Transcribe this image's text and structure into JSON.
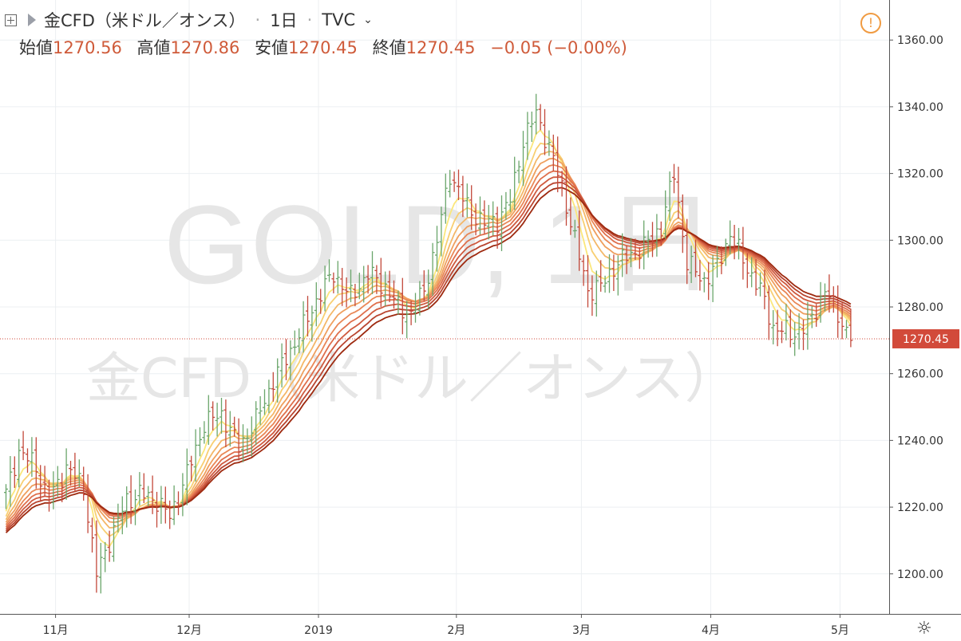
{
  "header": {
    "symbol": "金CFD（米ドル／オンス）",
    "interval": "1日",
    "exchange": "TVC",
    "open_label": "始値",
    "open": "1270.56",
    "high_label": "高値",
    "high": "1270.86",
    "low_label": "安値",
    "low": "1270.45",
    "close_label": "終値",
    "close": "1270.45",
    "change": "−0.05 (−0.00%)"
  },
  "watermark": {
    "line1": "GOLD, 1日",
    "line2": "金CFD（米ドル／オンス）"
  },
  "colors": {
    "up": "#6aa56b",
    "down": "#c2483a",
    "ribbon_fast": "#fbe77c",
    "ribbon_slow": "#9e2a10"
  },
  "chart_data": {
    "type": "ohlc",
    "y_range": [
      1188,
      1372
    ],
    "y_ticks": [
      "1360.00",
      "1340.00",
      "1320.00",
      "1300.00",
      "1280.00",
      "1260.00",
      "1240.00",
      "1220.00",
      "1200.00"
    ],
    "y_tick_values": [
      1360,
      1340,
      1320,
      1300,
      1280,
      1260,
      1240,
      1220,
      1200
    ],
    "x_ticks": [
      {
        "label": "11月",
        "bar": 11.5
      },
      {
        "label": "12月",
        "bar": 42.5
      },
      {
        "label": "2019",
        "bar": 72.5
      },
      {
        "label": "2月",
        "bar": 104.5
      },
      {
        "label": "3月",
        "bar": 133.5
      },
      {
        "label": "4月",
        "bar": 163.5
      },
      {
        "label": "5月",
        "bar": 193.5
      }
    ],
    "last_price": "1270.45",
    "last_value": 1270.45,
    "bar_count": 197,
    "anchors": [
      [
        0,
        1224
      ],
      [
        3,
        1237
      ],
      [
        7,
        1232
      ],
      [
        10,
        1222
      ],
      [
        14,
        1232
      ],
      [
        18,
        1226
      ],
      [
        21,
        1200
      ],
      [
        24,
        1210
      ],
      [
        28,
        1222
      ],
      [
        31,
        1224
      ],
      [
        35,
        1222
      ],
      [
        38,
        1217
      ],
      [
        42,
        1230
      ],
      [
        46,
        1245
      ],
      [
        50,
        1248
      ],
      [
        54,
        1238
      ],
      [
        58,
        1246
      ],
      [
        62,
        1258
      ],
      [
        66,
        1267
      ],
      [
        69,
        1274
      ],
      [
        72,
        1282
      ],
      [
        76,
        1290
      ],
      [
        80,
        1283
      ],
      [
        84,
        1290
      ],
      [
        88,
        1286
      ],
      [
        91,
        1280
      ],
      [
        94,
        1278
      ],
      [
        97,
        1285
      ],
      [
        100,
        1300
      ],
      [
        103,
        1320
      ],
      [
        107,
        1310
      ],
      [
        111,
        1305
      ],
      [
        114,
        1306
      ],
      [
        117,
        1312
      ],
      [
        120,
        1330
      ],
      [
        123,
        1338
      ],
      [
        126,
        1328
      ],
      [
        129,
        1316
      ],
      [
        132,
        1300
      ],
      [
        135,
        1285
      ],
      [
        138,
        1286
      ],
      [
        141,
        1292
      ],
      [
        144,
        1295
      ],
      [
        148,
        1298
      ],
      [
        152,
        1304
      ],
      [
        155,
        1320
      ],
      [
        158,
        1293
      ],
      [
        162,
        1288
      ],
      [
        165,
        1292
      ],
      [
        168,
        1302
      ],
      [
        171,
        1294
      ],
      [
        175,
        1285
      ],
      [
        178,
        1274
      ],
      [
        182,
        1272
      ],
      [
        186,
        1274
      ],
      [
        190,
        1285
      ],
      [
        193,
        1278
      ],
      [
        196,
        1270
      ]
    ],
    "ema_ribbon_periods": [
      5,
      8,
      11,
      14,
      17,
      20,
      23,
      26,
      29
    ]
  }
}
